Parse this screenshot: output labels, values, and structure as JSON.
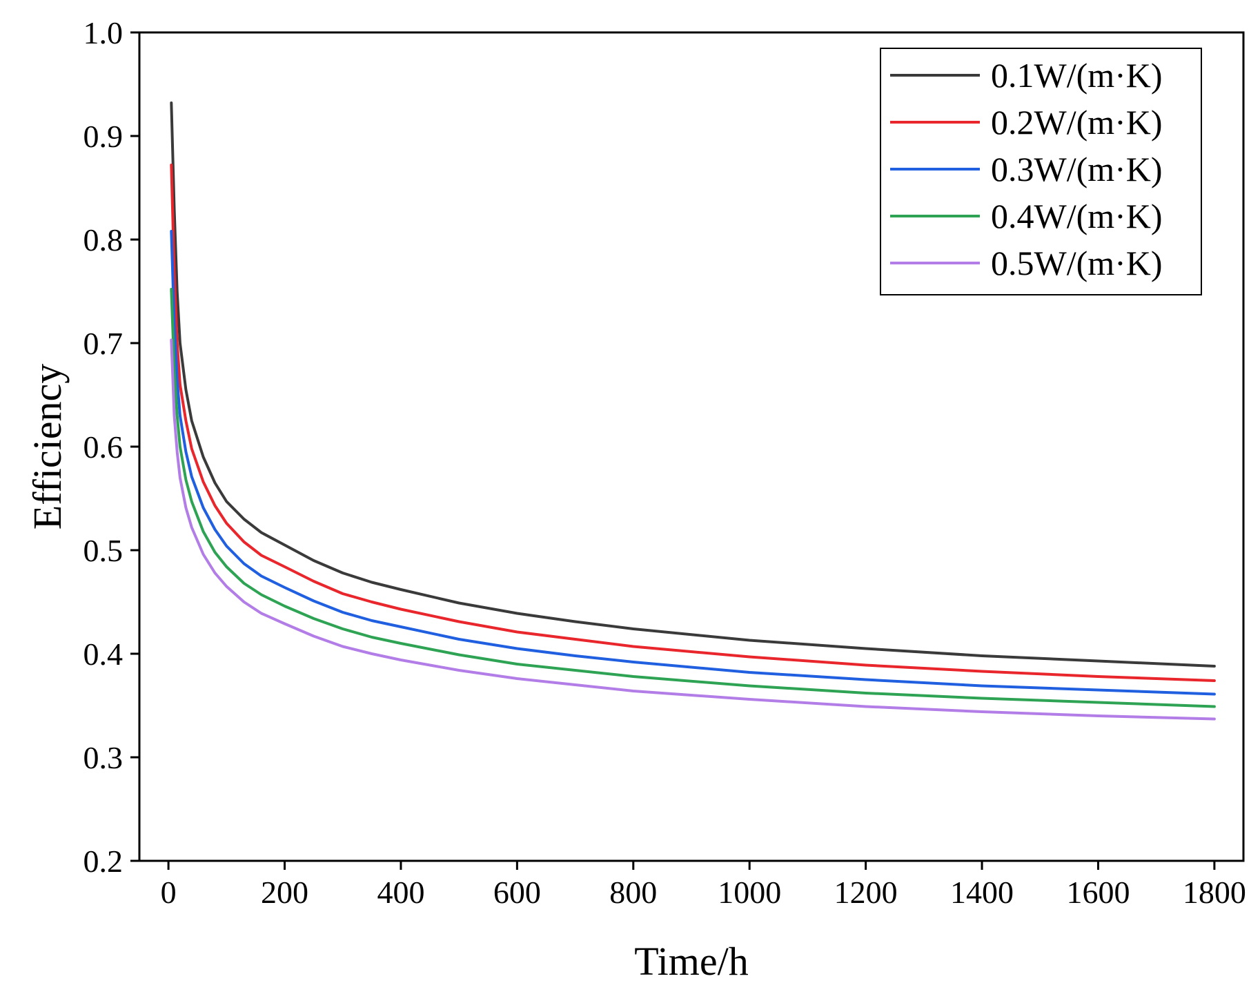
{
  "chart_data": {
    "type": "line",
    "title": "",
    "xlabel": "Time/h",
    "ylabel": "Efficiency",
    "xlim": [
      -50,
      1850
    ],
    "ylim": [
      0.2,
      1.0
    ],
    "x_ticks": [
      {
        "value": 0,
        "label": "0"
      },
      {
        "value": 200,
        "label": "200"
      },
      {
        "value": 400,
        "label": "400"
      },
      {
        "value": 600,
        "label": "600"
      },
      {
        "value": 800,
        "label": "800"
      },
      {
        "value": 1000,
        "label": "1000"
      },
      {
        "value": 1200,
        "label": "1200"
      },
      {
        "value": 1400,
        "label": "1400"
      },
      {
        "value": 1600,
        "label": "1600"
      },
      {
        "value": 1800,
        "label": "1800"
      }
    ],
    "y_ticks": [
      {
        "value": 0.2,
        "label": "0.2"
      },
      {
        "value": 0.3,
        "label": "0.3"
      },
      {
        "value": 0.4,
        "label": "0.4"
      },
      {
        "value": 0.5,
        "label": "0.5"
      },
      {
        "value": 0.6,
        "label": "0.6"
      },
      {
        "value": 0.7,
        "label": "0.7"
      },
      {
        "value": 0.8,
        "label": "0.8"
      },
      {
        "value": 0.9,
        "label": "0.9"
      },
      {
        "value": 1.0,
        "label": "1.0"
      }
    ],
    "grid": false,
    "legend_position": "top-right",
    "series": [
      {
        "name": "0.1W/(m·K)",
        "color": "#3a3a3a",
        "x": [
          5,
          10,
          15,
          20,
          30,
          40,
          60,
          80,
          100,
          130,
          160,
          200,
          250,
          300,
          350,
          400,
          500,
          600,
          700,
          800,
          1000,
          1200,
          1400,
          1600,
          1800
        ],
        "y": [
          0.932,
          0.83,
          0.75,
          0.7,
          0.655,
          0.625,
          0.59,
          0.565,
          0.547,
          0.53,
          0.517,
          0.505,
          0.49,
          0.478,
          0.469,
          0.462,
          0.449,
          0.439,
          0.431,
          0.424,
          0.413,
          0.405,
          0.398,
          0.393,
          0.388
        ]
      },
      {
        "name": "0.2W/(m·K)",
        "color": "#e8262b",
        "x": [
          5,
          10,
          15,
          20,
          30,
          40,
          60,
          80,
          100,
          130,
          160,
          200,
          250,
          300,
          350,
          400,
          500,
          600,
          700,
          800,
          1000,
          1200,
          1400,
          1600,
          1800
        ],
        "y": [
          0.872,
          0.77,
          0.7,
          0.66,
          0.625,
          0.598,
          0.566,
          0.543,
          0.526,
          0.508,
          0.495,
          0.484,
          0.47,
          0.458,
          0.45,
          0.443,
          0.431,
          0.421,
          0.414,
          0.407,
          0.397,
          0.389,
          0.383,
          0.378,
          0.374
        ]
      },
      {
        "name": "0.3W/(m·K)",
        "color": "#1f5fe0",
        "x": [
          5,
          10,
          15,
          20,
          30,
          40,
          60,
          80,
          100,
          130,
          160,
          200,
          250,
          300,
          350,
          400,
          500,
          600,
          700,
          800,
          1000,
          1200,
          1400,
          1600,
          1800
        ],
        "y": [
          0.808,
          0.72,
          0.665,
          0.63,
          0.595,
          0.571,
          0.541,
          0.52,
          0.504,
          0.487,
          0.475,
          0.464,
          0.451,
          0.44,
          0.432,
          0.426,
          0.414,
          0.405,
          0.398,
          0.392,
          0.382,
          0.375,
          0.369,
          0.365,
          0.361
        ]
      },
      {
        "name": "0.4W/(m·K)",
        "color": "#2ea354",
        "x": [
          5,
          10,
          15,
          20,
          30,
          40,
          60,
          80,
          100,
          130,
          160,
          200,
          250,
          300,
          350,
          400,
          500,
          600,
          700,
          800,
          1000,
          1200,
          1400,
          1600,
          1800
        ],
        "y": [
          0.752,
          0.675,
          0.63,
          0.6,
          0.568,
          0.547,
          0.518,
          0.498,
          0.484,
          0.468,
          0.457,
          0.446,
          0.434,
          0.424,
          0.416,
          0.41,
          0.399,
          0.39,
          0.384,
          0.378,
          0.369,
          0.362,
          0.357,
          0.353,
          0.349
        ]
      },
      {
        "name": "0.5W/(m·K)",
        "color": "#b27de6",
        "x": [
          5,
          10,
          15,
          20,
          30,
          40,
          60,
          80,
          100,
          130,
          160,
          200,
          250,
          300,
          350,
          400,
          500,
          600,
          700,
          800,
          1000,
          1200,
          1400,
          1600,
          1800
        ],
        "y": [
          0.703,
          0.63,
          0.595,
          0.57,
          0.541,
          0.522,
          0.496,
          0.478,
          0.465,
          0.45,
          0.439,
          0.429,
          0.417,
          0.407,
          0.4,
          0.394,
          0.384,
          0.376,
          0.37,
          0.364,
          0.356,
          0.349,
          0.344,
          0.34,
          0.337
        ]
      }
    ]
  }
}
